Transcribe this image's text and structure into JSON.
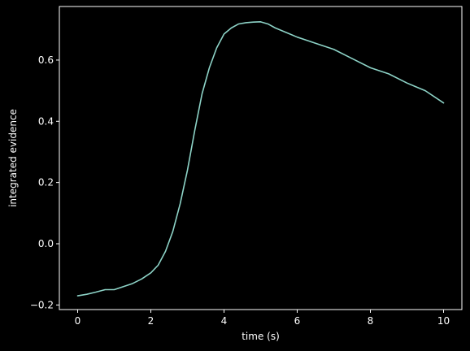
{
  "chart_data": {
    "type": "line",
    "title": "",
    "xlabel": "time (s)",
    "ylabel": "integrated evidence",
    "xlim": [
      -0.5,
      10.5
    ],
    "ylim": [
      -0.215,
      0.775
    ],
    "xticks": [
      0,
      2,
      4,
      6,
      8,
      10
    ],
    "yticks": [
      -0.2,
      0.0,
      0.2,
      0.4,
      0.6
    ],
    "xtick_labels": [
      "0",
      "2",
      "4",
      "6",
      "8",
      "10"
    ],
    "ytick_labels": [
      "−0.2",
      "0.0",
      "0.2",
      "0.4",
      "0.6"
    ],
    "grid": false,
    "background": "#000000",
    "foreground": "#ffffff",
    "series": [
      {
        "color": "#8dd3c7",
        "x": [
          0.0,
          0.25,
          0.5,
          0.75,
          1.0,
          1.25,
          1.5,
          1.75,
          2.0,
          2.2,
          2.4,
          2.6,
          2.8,
          3.0,
          3.2,
          3.4,
          3.6,
          3.8,
          4.0,
          4.2,
          4.4,
          4.6,
          4.8,
          5.0,
          5.2,
          5.4,
          5.6,
          5.8,
          6.0,
          6.5,
          7.0,
          7.5,
          8.0,
          8.5,
          9.0,
          9.5,
          10.0
        ],
        "y": [
          -0.17,
          -0.165,
          -0.158,
          -0.15,
          -0.15,
          -0.14,
          -0.13,
          -0.115,
          -0.095,
          -0.07,
          -0.025,
          0.04,
          0.13,
          0.24,
          0.37,
          0.49,
          0.575,
          0.64,
          0.685,
          0.705,
          0.718,
          0.722,
          0.724,
          0.725,
          0.718,
          0.705,
          0.695,
          0.685,
          0.675,
          0.655,
          0.635,
          0.605,
          0.575,
          0.555,
          0.525,
          0.5,
          0.46
        ]
      }
    ]
  }
}
